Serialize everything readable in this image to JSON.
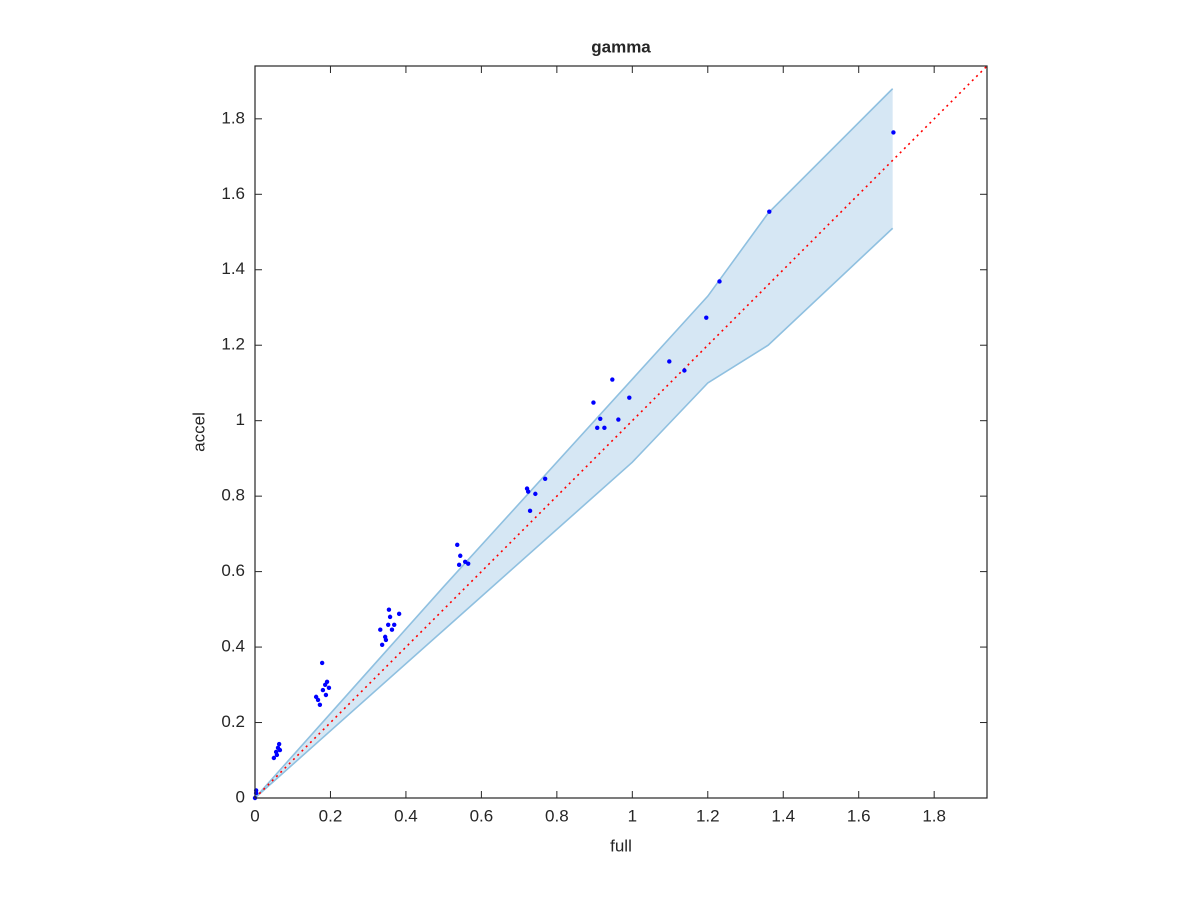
{
  "chart_data": {
    "type": "scatter",
    "title": "gamma",
    "x_label": "full",
    "y_label": "accel",
    "xlim": [
      0,
      1.94
    ],
    "ylim": [
      0,
      1.94
    ],
    "xticks": [
      0,
      0.2,
      0.4,
      0.6,
      0.8,
      1,
      1.2,
      1.4,
      1.6,
      1.8
    ],
    "yticks": [
      0,
      0.2,
      0.4,
      0.6,
      0.8,
      1,
      1.2,
      1.4,
      1.6,
      1.8
    ],
    "band": {
      "color": "#d6e7f4",
      "edge_color": "#8fc0e0",
      "x": [
        0,
        0.5,
        1,
        1.2,
        1.36,
        1.69
      ],
      "upper": [
        0,
        0.56,
        1.11,
        1.33,
        1.55,
        1.88
      ],
      "lower": [
        0,
        0.445,
        0.89,
        1.1,
        1.2,
        1.51
      ]
    },
    "reference_line": {
      "color": "#ff0000",
      "x": [
        0,
        1.94
      ],
      "values": [
        0,
        1.94
      ]
    },
    "points": {
      "color": "#0000ff",
      "x": [
        0,
        0.003,
        0.003,
        0.05,
        0.056,
        0.061,
        0.064,
        0.058,
        0.066,
        0.178,
        0.167,
        0.172,
        0.18,
        0.186,
        0.191,
        0.162,
        0.188,
        0.196,
        0.355,
        0.337,
        0.345,
        0.353,
        0.363,
        0.382,
        0.332,
        0.347,
        0.358,
        0.369,
        0.536,
        0.544,
        0.541,
        0.557,
        0.565,
        0.721,
        0.724,
        0.729,
        0.743,
        0.769,
        0.897,
        0.907,
        0.915,
        0.926,
        0.947,
        0.963,
        0.992,
        1.098,
        1.138,
        1.196,
        1.231,
        1.363,
        1.692
      ],
      "values": [
        0,
        0.013,
        0.02,
        0.106,
        0.122,
        0.133,
        0.143,
        0.114,
        0.127,
        0.358,
        0.26,
        0.247,
        0.286,
        0.3,
        0.308,
        0.268,
        0.273,
        0.292,
        0.499,
        0.406,
        0.427,
        0.459,
        0.446,
        0.488,
        0.446,
        0.419,
        0.48,
        0.459,
        0.671,
        0.642,
        0.618,
        0.626,
        0.621,
        0.82,
        0.812,
        0.761,
        0.806,
        0.846,
        1.048,
        0.981,
        1.005,
        0.981,
        1.109,
        1.003,
        1.061,
        1.157,
        1.133,
        1.273,
        1.369,
        1.554,
        1.764
      ]
    }
  }
}
